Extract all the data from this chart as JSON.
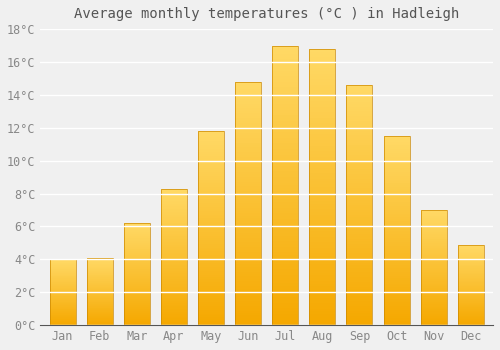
{
  "title": "Average monthly temperatures (°C ) in Hadleigh",
  "months": [
    "Jan",
    "Feb",
    "Mar",
    "Apr",
    "May",
    "Jun",
    "Jul",
    "Aug",
    "Sep",
    "Oct",
    "Nov",
    "Dec"
  ],
  "values": [
    4.0,
    4.1,
    6.2,
    8.3,
    11.8,
    14.8,
    17.0,
    16.8,
    14.6,
    11.5,
    7.0,
    4.9
  ],
  "bar_color_bottom": "#F5A800",
  "bar_color_top": "#FFD966",
  "bar_edge_color": "#CC8800",
  "ylim": [
    0,
    18
  ],
  "yticks": [
    0,
    2,
    4,
    6,
    8,
    10,
    12,
    14,
    16,
    18
  ],
  "ytick_labels": [
    "0°C",
    "2°C",
    "4°C",
    "6°C",
    "8°C",
    "10°C",
    "12°C",
    "14°C",
    "16°C",
    "18°C"
  ],
  "background_color": "#f0f0f0",
  "grid_color": "#ffffff",
  "title_fontsize": 10,
  "tick_fontsize": 8.5,
  "tick_font_color": "#888888",
  "title_font_color": "#555555",
  "bar_width": 0.7,
  "n_gradient_steps": 100
}
